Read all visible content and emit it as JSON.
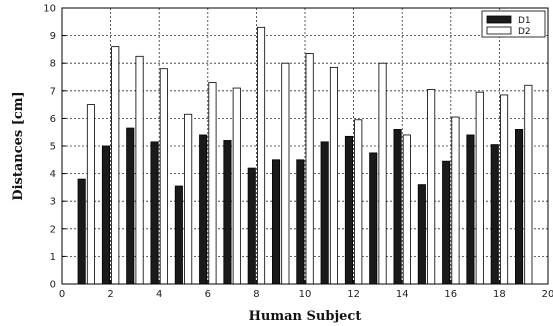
{
  "chart_data": {
    "type": "bar",
    "xlabel": "Human Subject",
    "ylabel": "Distances [cm]",
    "xlim": [
      0,
      20
    ],
    "ylim": [
      0,
      10
    ],
    "xticks": [
      0,
      2,
      4,
      6,
      8,
      10,
      12,
      14,
      16,
      18,
      20
    ],
    "yticks": [
      0,
      1,
      2,
      3,
      4,
      5,
      6,
      7,
      8,
      9,
      10
    ],
    "grid": true,
    "legend_position": "top-right",
    "categories": [
      1,
      2,
      3,
      4,
      5,
      6,
      7,
      8,
      9,
      10,
      11,
      12,
      13,
      14,
      15,
      16,
      17,
      18,
      19
    ],
    "series": [
      {
        "name": "D1",
        "color": "#1a1a1a",
        "values": [
          3.8,
          5.0,
          5.65,
          5.15,
          3.55,
          5.4,
          5.2,
          4.2,
          4.5,
          4.5,
          5.15,
          5.35,
          4.75,
          5.6,
          3.6,
          4.45,
          5.4,
          5.05,
          5.6
        ]
      },
      {
        "name": "D2",
        "color": "#ffffff",
        "values": [
          6.5,
          8.6,
          8.25,
          7.8,
          6.15,
          7.3,
          7.1,
          9.3,
          8.0,
          8.35,
          7.85,
          5.95,
          8.0,
          5.4,
          7.05,
          6.05,
          6.95,
          6.85,
          7.2
        ]
      }
    ]
  }
}
